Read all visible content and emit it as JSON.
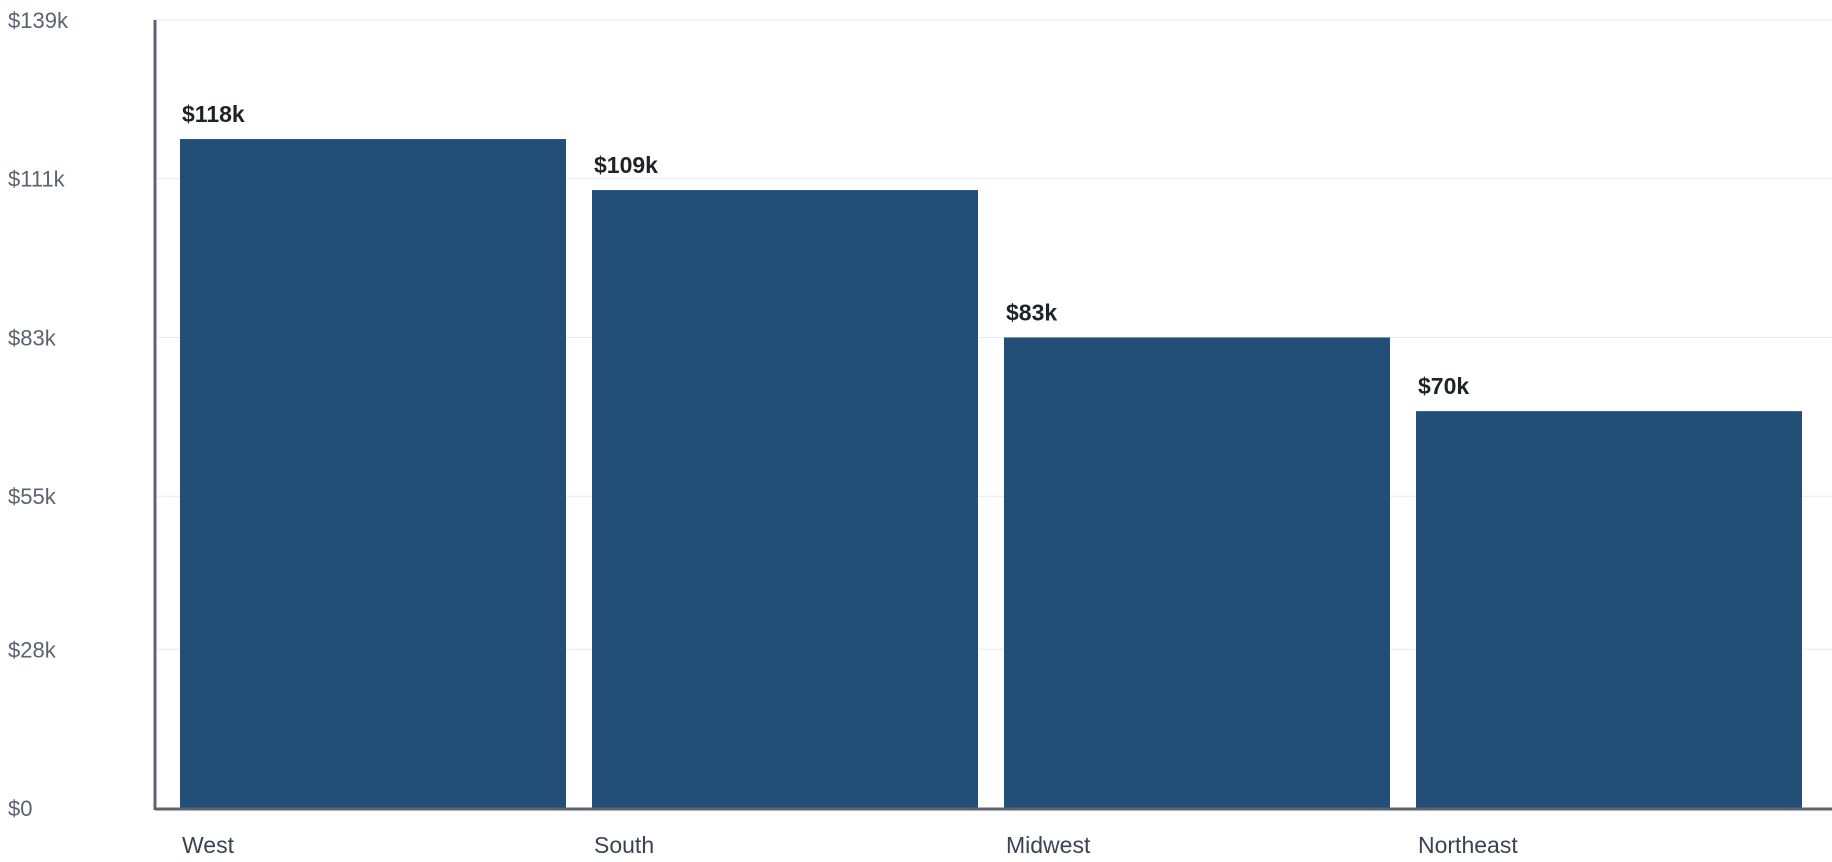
{
  "chart_data": {
    "type": "bar",
    "title": "",
    "xlabel": "",
    "ylabel": "",
    "categories": [
      "West",
      "South",
      "Midwest",
      "Northeast"
    ],
    "values": [
      118,
      109,
      83,
      70
    ],
    "data_labels": [
      "$118k",
      "$109k",
      "$83k",
      "$70k"
    ],
    "ylim": [
      0,
      139
    ],
    "yticks": [
      0,
      28,
      55,
      83,
      111,
      139
    ],
    "ytick_labels": [
      "$0",
      "$28k",
      "$55k",
      "$83k",
      "$111k",
      "$139k"
    ],
    "grid": true,
    "legend": "none",
    "bar_color": "#234e78",
    "grid_color": "#e6e9ee",
    "axis_color": "#5b6470"
  }
}
